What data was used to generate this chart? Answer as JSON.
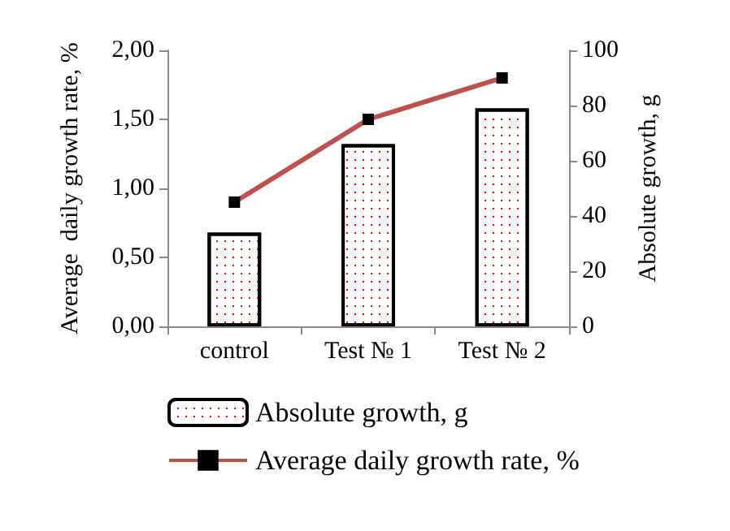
{
  "chart_data": {
    "type": "bar",
    "categories": [
      "control",
      "Test № 1",
      "Test № 2"
    ],
    "series": [
      {
        "name": "Absolute growth, g",
        "axis": "y2",
        "color": "#ffffff",
        "values": [
          34,
          66,
          79
        ]
      },
      {
        "name": "Average daily growth rate, %",
        "type": "line",
        "axis": "y",
        "color": "#c0504d",
        "values": [
          0.9,
          1.5,
          1.8
        ]
      }
    ],
    "ylabel": "Average  daily growth rate, %",
    "y2label": "Absolute growth, g",
    "ylim": [
      0,
      2
    ],
    "yticks": [
      {
        "value": 0,
        "label": "0,00"
      },
      {
        "value": 0.5,
        "label": "0,50"
      },
      {
        "value": 1,
        "label": "1,00"
      },
      {
        "value": 1.5,
        "label": "1,50"
      },
      {
        "value": 2,
        "label": "2,00"
      }
    ],
    "y2lim": [
      0,
      100
    ],
    "y2ticks": [
      0,
      20,
      40,
      60,
      80,
      100
    ],
    "marker": "square",
    "legend": "bottom",
    "grid": false
  }
}
